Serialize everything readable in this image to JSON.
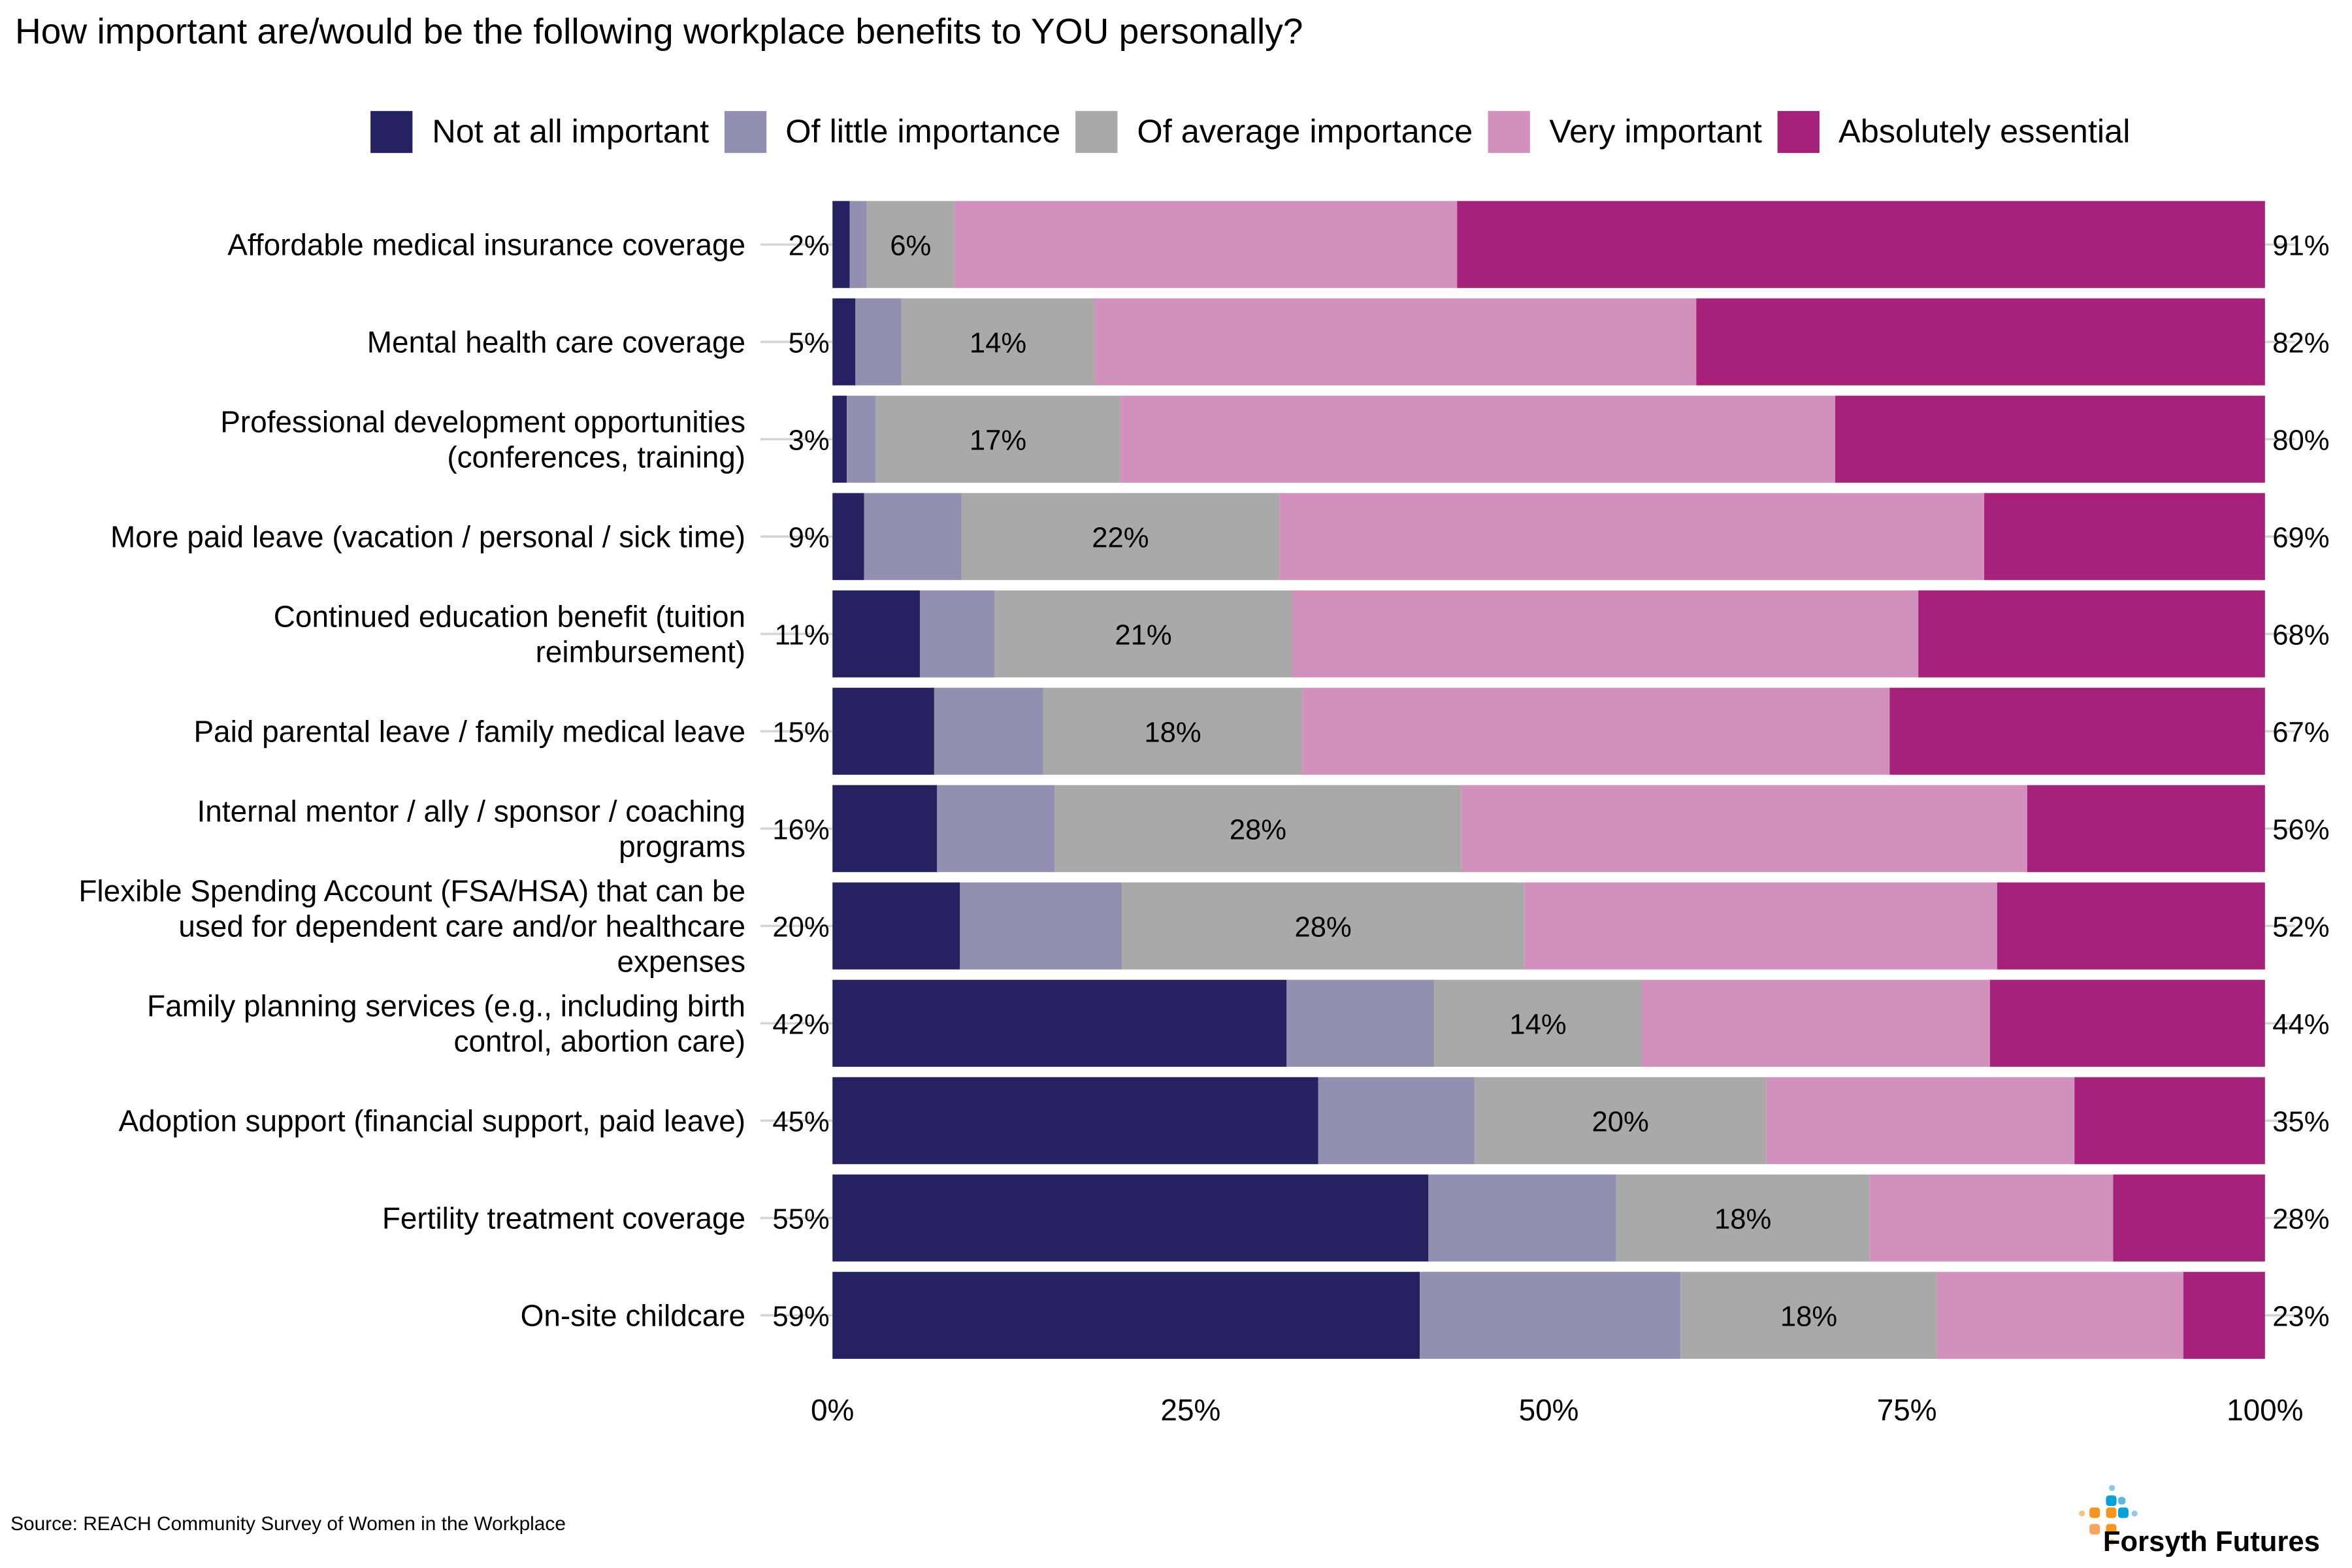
{
  "chart_data": {
    "type": "bar",
    "orientation": "horizontal",
    "stacked": true,
    "title": "How important are/would be the following workplace benefits to YOU personally?",
    "xlabel": "",
    "ylabel": "",
    "xlim": [
      0,
      100
    ],
    "x_ticks": [
      "0%",
      "25%",
      "50%",
      "75%",
      "100%"
    ],
    "x_tick_values": [
      0,
      25,
      50,
      75,
      100
    ],
    "grid": false,
    "legend_position": "top",
    "categories": [
      "Affordable medical insurance coverage",
      "Mental health care coverage",
      "Professional development opportunities\n(conferences, training)",
      "More paid leave (vacation / personal / sick time)",
      "Continued education benefit (tuition\nreimbursement)",
      "Paid parental leave / family medical leave",
      "Internal mentor / ally / sponsor / coaching\nprograms",
      "Flexible Spending Account (FSA/HSA) that can be\nused for dependent care and/or healthcare\nexpenses",
      "Family planning services (e.g., including birth\ncontrol, abortion care)",
      "Adoption support (financial support, paid leave)",
      "Fertility treatment coverage",
      "On-site childcare"
    ],
    "series": [
      {
        "name": "Not at all important",
        "color": "#262262",
        "values": [
          1.2,
          1.6,
          1.0,
          2.2,
          6.1,
          7.1,
          7.3,
          8.9,
          31.7,
          33.9,
          41.6,
          41.0
        ]
      },
      {
        "name": "Of little importance",
        "color": "#9290B0",
        "values": [
          1.2,
          3.2,
          2.0,
          6.8,
          5.2,
          7.6,
          8.2,
          11.3,
          10.3,
          10.9,
          13.1,
          18.2
        ]
      },
      {
        "name": "Of average importance",
        "color": "#A9A9A9",
        "values": [
          6.1,
          13.5,
          17.1,
          22.2,
          20.8,
          18.1,
          28.4,
          28.1,
          14.5,
          20.4,
          17.7,
          17.9
        ]
      },
      {
        "name": "Very important",
        "color": "#D291BC",
        "values": [
          35.1,
          42.0,
          49.9,
          49.2,
          43.7,
          41.0,
          39.5,
          33.0,
          24.3,
          21.5,
          17.0,
          17.2
        ]
      },
      {
        "name": "Absolutely essential",
        "color": "#A6217A",
        "values": [
          56.4,
          39.7,
          30.0,
          19.6,
          24.2,
          26.2,
          16.6,
          18.7,
          19.2,
          13.3,
          10.6,
          5.7
        ]
      }
    ],
    "data_labels": {
      "left_totals": [
        "2%",
        "5%",
        "3%",
        "9%",
        "11%",
        "15%",
        "16%",
        "20%",
        "42%",
        "45%",
        "55%",
        "59%"
      ],
      "middle": [
        "6%",
        "14%",
        "17%",
        "22%",
        "21%",
        "18%",
        "28%",
        "28%",
        "14%",
        "20%",
        "18%",
        "18%"
      ],
      "right_totals": [
        "91%",
        "82%",
        "80%",
        "69%",
        "68%",
        "67%",
        "56%",
        "52%",
        "44%",
        "35%",
        "28%",
        "23%"
      ]
    },
    "source": "Source: REACH Community Survey of Women in the Workplace"
  },
  "branding": {
    "logo_text": "Forsyth Futures",
    "logo_colors": [
      "#8DC8E8",
      "#00A3D9",
      "#5EB8E0",
      "#F7941D",
      "#F8A65B",
      "#FBBF8A"
    ]
  }
}
